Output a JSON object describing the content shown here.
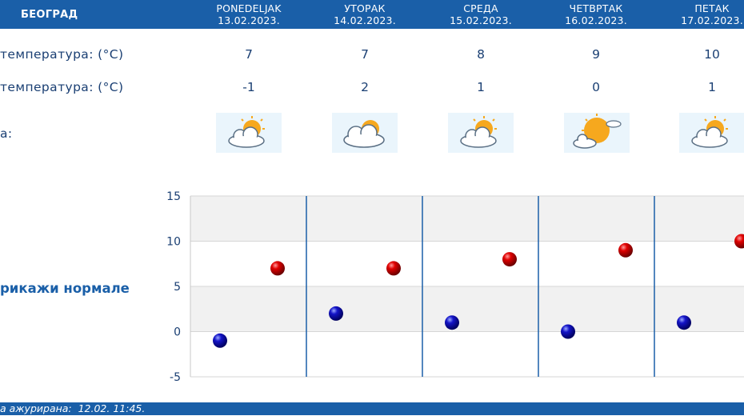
{
  "header": {
    "city": "БЕОГРАД",
    "days": [
      {
        "name": "PONEDELJAK",
        "date": "13.02.2023."
      },
      {
        "name": "УТОРАК",
        "date": "14.02.2023."
      },
      {
        "name": "СРЕДА",
        "date": "15.02.2023."
      },
      {
        "name": "ЧЕТВРТАК",
        "date": "16.02.2023."
      },
      {
        "name": "ПЕТАК",
        "date": "17.02.2023."
      }
    ]
  },
  "rows": {
    "max_label": "температура: (°C)",
    "min_label": "температура: (°C)",
    "icon_label": "а:",
    "max": [
      "7",
      "7",
      "8",
      "9",
      "10"
    ],
    "min": [
      "-1",
      "2",
      "1",
      "0",
      "1"
    ],
    "icons": [
      "partly-cloudy-icon",
      "cloudy-sun-icon",
      "partly-cloudy-icon",
      "mostly-sunny-icon",
      "partly-cloudy-icon"
    ]
  },
  "normals_link": "рикажи нормале",
  "chart_data": {
    "type": "scatter",
    "categories": [
      "13.02.2023.",
      "14.02.2023.",
      "15.02.2023.",
      "16.02.2023.",
      "17.02.2023."
    ],
    "series": [
      {
        "values": [
          7,
          7,
          8,
          9,
          10
        ],
        "color": "#cc0000"
      },
      {
        "values": [
          -1,
          2,
          1,
          0,
          1
        ],
        "color": "#0000aa"
      }
    ],
    "yticks": [
      "15",
      "10",
      "5",
      "0",
      "-5"
    ],
    "ylim": [
      -5,
      15
    ],
    "grid": true
  },
  "footer": {
    "updated": "а ажурирана:  12.02. 11:45."
  }
}
